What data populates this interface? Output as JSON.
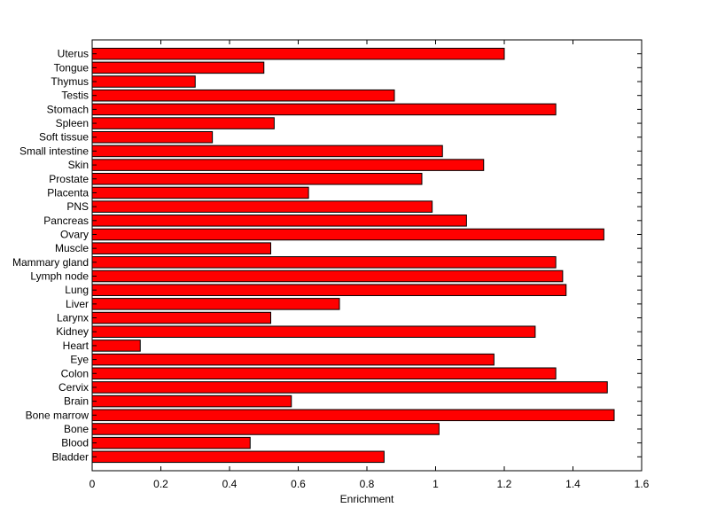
{
  "chart_data": {
    "type": "bar",
    "orientation": "horizontal",
    "xlabel": "Enrichment",
    "ylabel": "",
    "title": "",
    "xlim": [
      0,
      1.6
    ],
    "xticks": [
      0,
      0.2,
      0.4,
      0.6,
      0.8,
      1,
      1.2,
      1.4,
      1.6
    ],
    "xtick_labels": [
      "0",
      "0.2",
      "0.4",
      "0.6",
      "0.8",
      "1",
      "1.2",
      "1.4",
      "1.6"
    ],
    "grid": false,
    "bar_color": "#ff0000",
    "bar_edge_color": "#000000",
    "categories": [
      "Uterus",
      "Tongue",
      "Thymus",
      "Testis",
      "Stomach",
      "Spleen",
      "Soft tissue",
      "Small intestine",
      "Skin",
      "Prostate",
      "Placenta",
      "PNS",
      "Pancreas",
      "Ovary",
      "Muscle",
      "Mammary gland",
      "Lymph node",
      "Lung",
      "Liver",
      "Larynx",
      "Kidney",
      "Heart",
      "Eye",
      "Colon",
      "Cervix",
      "Brain",
      "Bone marrow",
      "Bone",
      "Blood",
      "Bladder"
    ],
    "values": [
      1.2,
      0.5,
      0.3,
      0.88,
      1.35,
      0.53,
      0.35,
      1.02,
      1.14,
      0.96,
      0.63,
      0.99,
      1.09,
      1.49,
      0.52,
      1.35,
      1.37,
      1.38,
      0.72,
      0.52,
      1.29,
      0.14,
      1.17,
      1.35,
      1.5,
      0.58,
      1.52,
      1.01,
      0.46,
      0.85
    ]
  }
}
